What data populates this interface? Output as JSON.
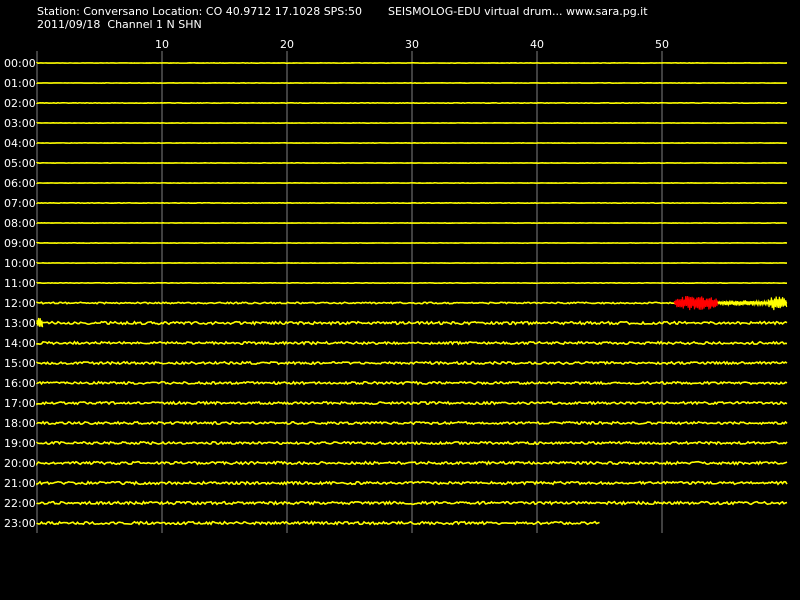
{
  "header": {
    "station_line": "Station: Conversano Location: CO 40.9712 17.1028 SPS:50",
    "product_line": "SEISMOLOG-EDU virtual drum... www.sara.pg.it",
    "date_channel_line": "2011/09/18  Channel 1 N SHN"
  },
  "colors": {
    "background": "#000000",
    "trace": "#ffff00",
    "event": "#ff0000",
    "grid": "#808080",
    "text": "#ffffff"
  },
  "chart_data": {
    "type": "line",
    "title": "",
    "xlabel": "",
    "ylabel": "",
    "x_unit": "minutes",
    "xlim": [
      0,
      60
    ],
    "x_ticks": [
      10,
      20,
      30,
      40,
      50
    ],
    "x_tick_labels": [
      "10",
      "20",
      "30",
      "40",
      "50"
    ],
    "grid": "vertical",
    "rows": [
      {
        "label": "00:00",
        "noise": 0.05,
        "end_minute": 60
      },
      {
        "label": "01:00",
        "noise": 0.05,
        "end_minute": 60
      },
      {
        "label": "02:00",
        "noise": 0.08,
        "end_minute": 60
      },
      {
        "label": "03:00",
        "noise": 0.05,
        "end_minute": 60
      },
      {
        "label": "04:00",
        "noise": 0.05,
        "end_minute": 60
      },
      {
        "label": "05:00",
        "noise": 0.05,
        "end_minute": 60
      },
      {
        "label": "06:00",
        "noise": 0.05,
        "end_minute": 60
      },
      {
        "label": "07:00",
        "noise": 0.08,
        "end_minute": 60
      },
      {
        "label": "08:00",
        "noise": 0.05,
        "end_minute": 60
      },
      {
        "label": "09:00",
        "noise": 0.05,
        "end_minute": 60
      },
      {
        "label": "10:00",
        "noise": 0.05,
        "end_minute": 60
      },
      {
        "label": "11:00",
        "noise": 0.08,
        "end_minute": 60
      },
      {
        "label": "12:00",
        "noise": 0.25,
        "end_minute": 60
      },
      {
        "label": "13:00",
        "noise": 0.45,
        "end_minute": 60
      },
      {
        "label": "14:00",
        "noise": 0.4,
        "end_minute": 60
      },
      {
        "label": "15:00",
        "noise": 0.4,
        "end_minute": 60
      },
      {
        "label": "16:00",
        "noise": 0.4,
        "end_minute": 60
      },
      {
        "label": "17:00",
        "noise": 0.4,
        "end_minute": 60
      },
      {
        "label": "18:00",
        "noise": 0.4,
        "end_minute": 60
      },
      {
        "label": "19:00",
        "noise": 0.4,
        "end_minute": 60
      },
      {
        "label": "20:00",
        "noise": 0.45,
        "end_minute": 60
      },
      {
        "label": "21:00",
        "noise": 0.45,
        "end_minute": 60
      },
      {
        "label": "22:00",
        "noise": 0.45,
        "end_minute": 60
      },
      {
        "label": "23:00",
        "noise": 0.45,
        "end_minute": 45
      }
    ],
    "events": [
      {
        "row": "12:00",
        "start_minute": 51,
        "end_minute": 54.5,
        "amplitude": 1.0,
        "color": "red"
      },
      {
        "row": "12:00",
        "start_minute": 54.5,
        "end_minute": 58.5,
        "amplitude": 0.35,
        "color": "yellow"
      },
      {
        "row": "12:00",
        "start_minute": 58.5,
        "end_minute": 60,
        "amplitude": 1.0,
        "color": "yellow"
      },
      {
        "row": "13:00",
        "start_minute": 0,
        "end_minute": 0.5,
        "amplitude": 0.8,
        "color": "yellow"
      }
    ]
  }
}
